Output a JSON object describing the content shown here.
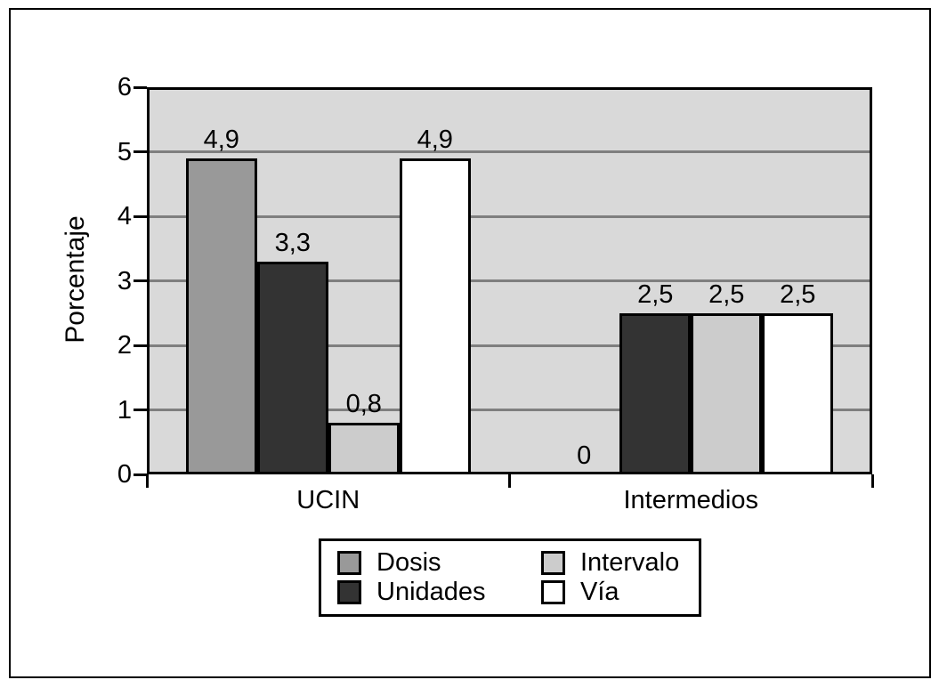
{
  "chart_data": {
    "type": "bar",
    "title": "",
    "xlabel": "",
    "ylabel": "Porcentaje",
    "categories": [
      "UCIN",
      "Intermedios"
    ],
    "series": [
      {
        "name": "Dosis",
        "color": "#999999",
        "values": [
          4.9,
          0
        ],
        "labels": [
          "4,9",
          "0"
        ]
      },
      {
        "name": "Unidades",
        "color": "#333333",
        "values": [
          3.3,
          2.5
        ],
        "labels": [
          "3,3",
          "2,5"
        ]
      },
      {
        "name": "Intervalo",
        "color": "#cccccc",
        "values": [
          0.8,
          2.5
        ],
        "labels": [
          "0,8",
          "2,5"
        ]
      },
      {
        "name": "Vía",
        "color": "#ffffff",
        "values": [
          4.9,
          2.5
        ],
        "labels": [
          "4,9",
          "2,5"
        ]
      }
    ],
    "ylim": [
      0,
      6
    ],
    "yticks": [
      0,
      1,
      2,
      3,
      4,
      5,
      6
    ],
    "grid": true,
    "legend_position": "bottom",
    "colors": {
      "plot_background": "#d9d9d9",
      "gridline": "#7f7f7f",
      "frame": "#000000"
    }
  }
}
